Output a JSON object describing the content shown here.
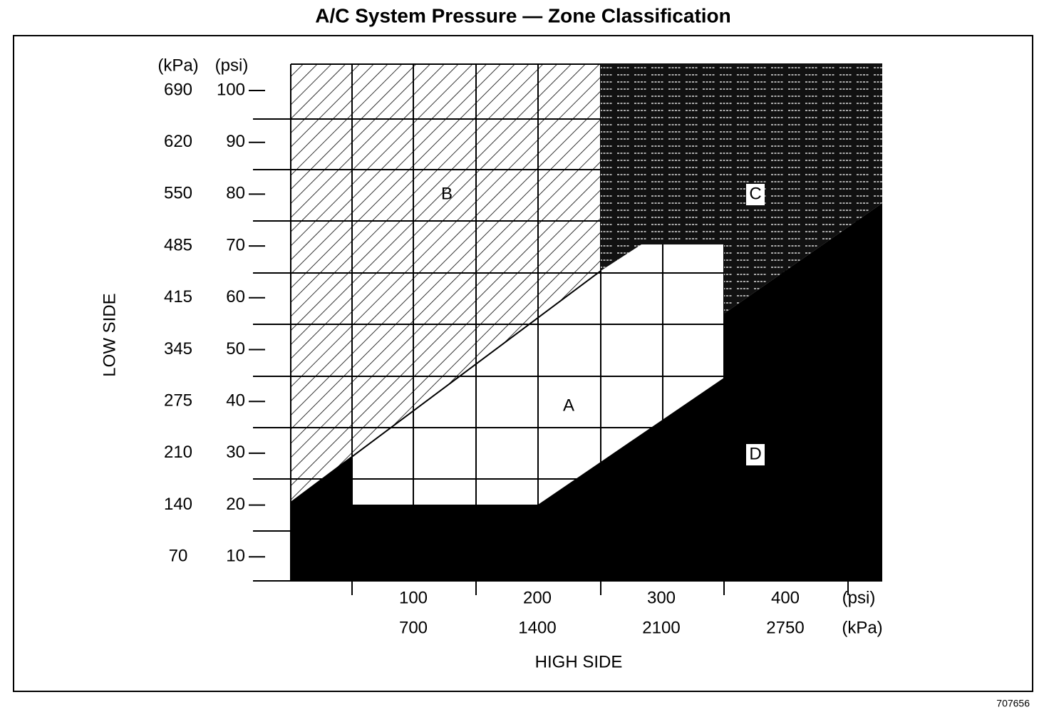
{
  "title": "A/C System Pressure — Zone Classification",
  "y_axis": {
    "title": "LOW SIDE",
    "unit_kpa": "(kPa)",
    "unit_psi": "(psi)",
    "ticks": [
      {
        "kpa": "690",
        "psi": "100"
      },
      {
        "kpa": "620",
        "psi": "90"
      },
      {
        "kpa": "550",
        "psi": "80"
      },
      {
        "kpa": "485",
        "psi": "70"
      },
      {
        "kpa": "415",
        "psi": "60"
      },
      {
        "kpa": "345",
        "psi": "50"
      },
      {
        "kpa": "275",
        "psi": "40"
      },
      {
        "kpa": "210",
        "psi": "30"
      },
      {
        "kpa": "140",
        "psi": "20"
      },
      {
        "kpa": "70",
        "psi": "10"
      }
    ]
  },
  "x_axis": {
    "title": "HIGH SIDE",
    "unit_psi": "(psi)",
    "unit_kpa": "(kPa)",
    "ticks": [
      {
        "psi": "100",
        "kpa": "700"
      },
      {
        "psi": "200",
        "kpa": "1400"
      },
      {
        "psi": "300",
        "kpa": "2100"
      },
      {
        "psi": "400",
        "kpa": "2750"
      }
    ]
  },
  "zones": [
    "A",
    "B",
    "C",
    "D"
  ],
  "figure_id": "707656"
}
